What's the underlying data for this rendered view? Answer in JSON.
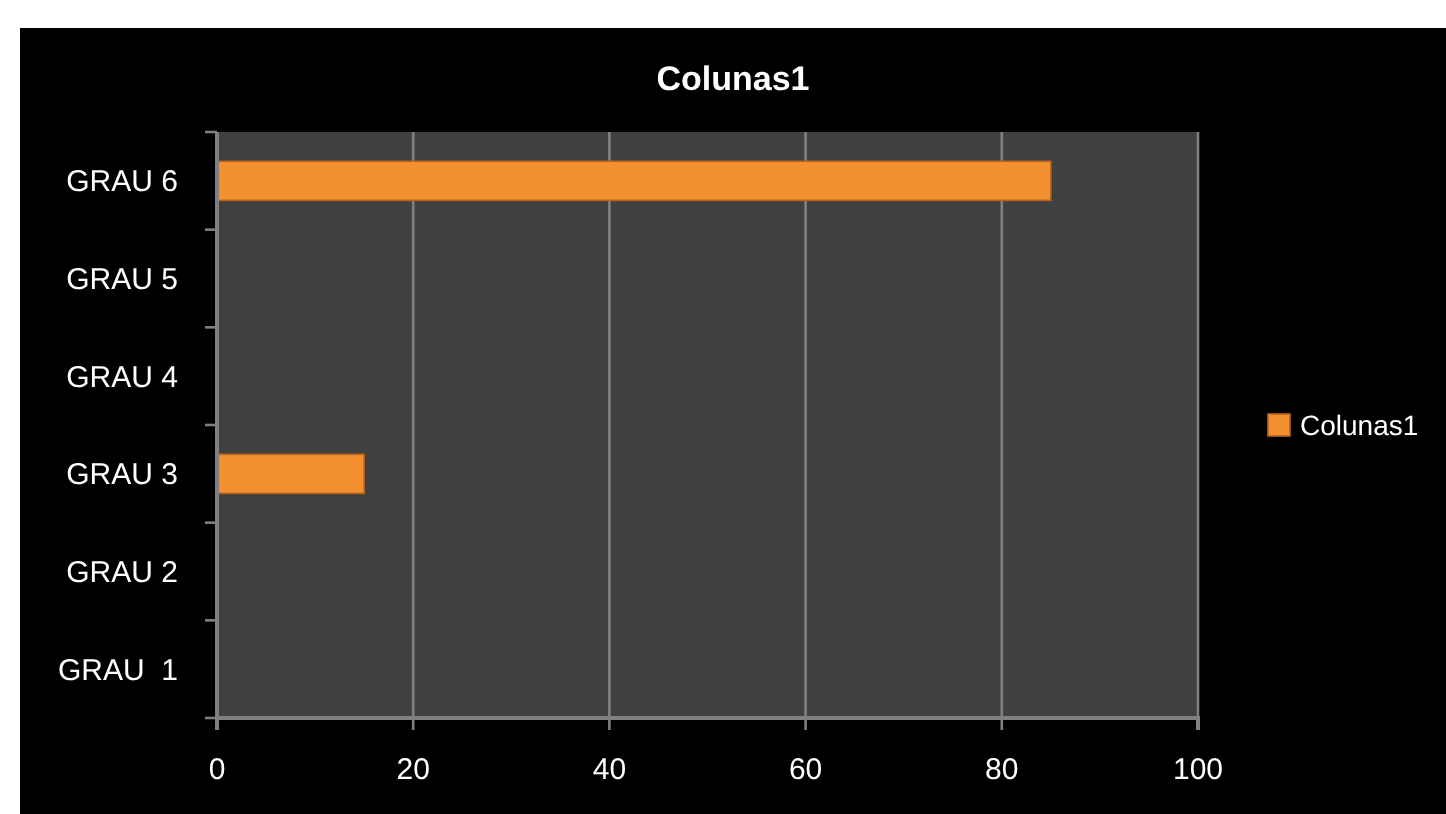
{
  "chart_data": {
    "type": "bar",
    "orientation": "horizontal",
    "title": "Colunas1",
    "categories": [
      "GRAU 6",
      "GRAU 5",
      "GRAU 4",
      "GRAU 3",
      "GRAU 2",
      "GRAU  1"
    ],
    "series": [
      {
        "name": "Colunas1",
        "color": "#f39030",
        "values": [
          85,
          null,
          null,
          15,
          null,
          null
        ]
      }
    ],
    "xlim": [
      0,
      100
    ],
    "xticks": [
      0,
      20,
      40,
      60,
      80,
      100
    ],
    "grid": "x",
    "legend": "right"
  }
}
